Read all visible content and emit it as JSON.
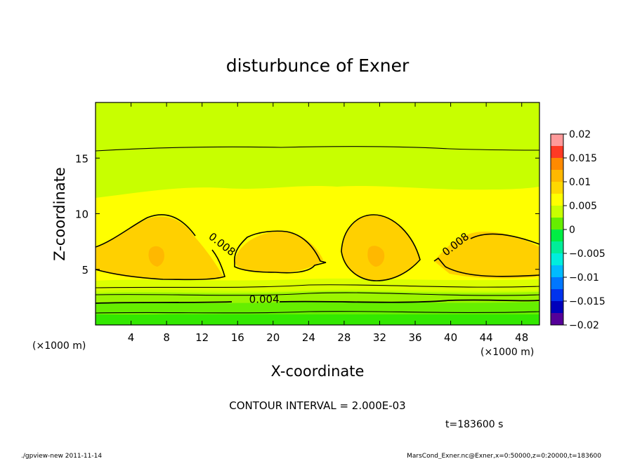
{
  "chart_data": {
    "type": "heatmap",
    "title": "disturbunce of Exner",
    "xlabel": "X-coordinate",
    "ylabel": "Z-coordinate",
    "x_unit_left": "(×1000 m)",
    "x_unit_right": "(×1000 m)",
    "xlim": [
      0,
      50
    ],
    "ylim": [
      0,
      20
    ],
    "x_ticks": [
      4,
      8,
      12,
      16,
      20,
      24,
      28,
      32,
      36,
      40,
      44,
      48
    ],
    "x_tick_labels": [
      "4",
      "8",
      "12",
      "16",
      "20",
      "24",
      "28",
      "32",
      "36",
      "40",
      "44",
      "48"
    ],
    "y_ticks": [
      5,
      10,
      15
    ],
    "y_tick_labels": [
      "5",
      "10",
      "15"
    ],
    "colorbar": {
      "range": [
        -0.02,
        0.02
      ],
      "ticks": [
        0.02,
        0.015,
        0.01,
        0.005,
        0,
        -0.005,
        -0.01,
        -0.015,
        -0.02
      ],
      "tick_labels": [
        "0.02",
        "0.015",
        "0.01",
        "0.005",
        "0",
        "−0.005",
        "−0.01",
        "−0.015",
        "−0.02"
      ],
      "colors": [
        "#ff9a9a",
        "#ff3a24",
        "#ff8a00",
        "#ffb800",
        "#ffd800",
        "#ffff00",
        "#c8ff00",
        "#66ee00",
        "#00ee44",
        "#00ee99",
        "#00eedd",
        "#00bbff",
        "#0077ff",
        "#0033ee",
        "#0000bb",
        "#550099"
      ]
    },
    "contour_labels": [
      {
        "text": "0.008",
        "x": 14.0,
        "z": 7.0
      },
      {
        "text": "0.004",
        "x": 19.0,
        "z": 2.0
      },
      {
        "text": "0.008",
        "x": 40.8,
        "z": 7.0
      }
    ],
    "contour_interval_text": "CONTOUR INTERVAL = 2.000E-03",
    "time_text": "t=183600  s"
  },
  "footer": {
    "left": "./gpview-new   2011-11-14",
    "right": "MarsCond_Exner.nc@Exner,x=0:50000,z=0:20000,t=183600"
  }
}
